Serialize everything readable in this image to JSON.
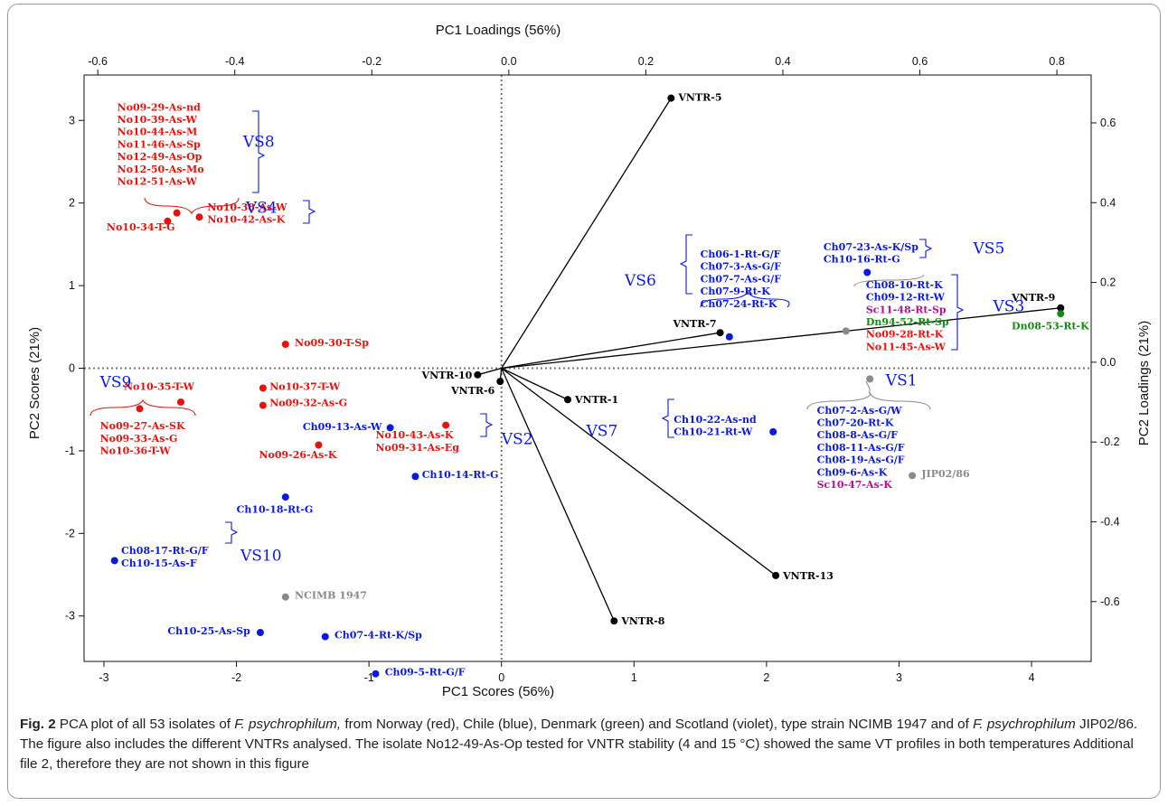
{
  "chart_data": {
    "type": "scatter",
    "subtype": "pca-biplot",
    "xlabel_bottom": "PC1 Scores (56%)",
    "xlabel_top": "PC1 Loadings (56%)",
    "ylabel_left": "PC2 Scores (21%)",
    "ylabel_right": "PC2 Loadings (21%)",
    "xlim": [
      -3.15,
      4.45
    ],
    "ylim": [
      -3.55,
      3.55
    ],
    "loadings_xlim": [
      -0.62,
      0.85
    ],
    "loadings_ylim": [
      -0.75,
      0.72
    ],
    "grid": false,
    "reference_lines": "dotted at x=0 and y=0",
    "x_ticks": [
      -3,
      -2,
      -1,
      0,
      1,
      2,
      3,
      4
    ],
    "y_ticks": [
      -3,
      -2,
      -1,
      0,
      1,
      2,
      3
    ],
    "top_ticks": [
      -0.6,
      -0.4,
      -0.2,
      0.0,
      0.2,
      0.4,
      0.6,
      0.8
    ],
    "right_ticks": [
      -0.6,
      -0.4,
      -0.2,
      0.0,
      0.2,
      0.4,
      0.6
    ],
    "x_tick_labels": [
      "-3",
      "-2",
      "-1",
      "0",
      "1",
      "2",
      "3",
      "4"
    ],
    "y_tick_labels": [
      "-3",
      "-2",
      "-1",
      "0",
      "1",
      "2",
      "3"
    ],
    "top_tick_labels": [
      "-0.6",
      "-0.4",
      "-0.2",
      "0.0",
      "0.2",
      "0.4",
      "0.6",
      "0.8"
    ],
    "right_tick_labels": [
      "-0.6",
      "-0.4",
      "-0.2",
      "0.0",
      "0.2",
      "0.4",
      "0.6"
    ],
    "colors": {
      "norway": "#e8120c",
      "chile": "#0a18e0",
      "denmark": "#128a12",
      "scotland": "#b0119a",
      "reference": "#8a8a8a",
      "vntr": "#000000"
    },
    "vntr_vectors": [
      {
        "name": "VNTR-5",
        "x": 1.28,
        "y": 3.27
      },
      {
        "name": "VNTR-9",
        "x": 4.22,
        "y": 0.73
      },
      {
        "name": "VNTR-7",
        "x": 1.65,
        "y": 0.43
      },
      {
        "name": "VNTR-10",
        "x": -0.18,
        "y": -0.08
      },
      {
        "name": "VNTR-6",
        "x": -0.01,
        "y": -0.16
      },
      {
        "name": "VNTR-1",
        "x": 0.5,
        "y": -0.38
      },
      {
        "name": "VNTR-13",
        "x": 2.07,
        "y": -2.51
      },
      {
        "name": "VNTR-8",
        "x": 0.85,
        "y": -3.06
      }
    ],
    "vntr_label_text": [
      "VNTR-5",
      "VNTR-9",
      "VNTR-7",
      "VNTR-10",
      "VNTR-6",
      "VNTR-1",
      "VNTR-13",
      "VNTR-8"
    ],
    "isolate_points": [
      {
        "x": -2.45,
        "y": 1.88,
        "color": "norway"
      },
      {
        "x": -2.28,
        "y": 1.83,
        "color": "norway"
      },
      {
        "x": -2.52,
        "y": 1.78,
        "color": "norway"
      },
      {
        "x": -1.63,
        "y": 0.29,
        "color": "norway"
      },
      {
        "x": -2.42,
        "y": -0.41,
        "color": "norway"
      },
      {
        "x": -2.73,
        "y": -0.49,
        "color": "norway"
      },
      {
        "x": -1.8,
        "y": -0.24,
        "color": "norway"
      },
      {
        "x": -1.8,
        "y": -0.45,
        "color": "norway"
      },
      {
        "x": -1.38,
        "y": -0.93,
        "color": "norway"
      },
      {
        "x": -0.42,
        "y": -0.69,
        "color": "norway"
      },
      {
        "x": -0.84,
        "y": -0.72,
        "color": "chile"
      },
      {
        "x": -0.65,
        "y": -1.31,
        "color": "chile"
      },
      {
        "x": -1.63,
        "y": -1.56,
        "color": "chile"
      },
      {
        "x": -2.92,
        "y": -2.33,
        "color": "chile"
      },
      {
        "x": -1.82,
        "y": -3.2,
        "color": "chile"
      },
      {
        "x": -1.33,
        "y": -3.25,
        "color": "chile"
      },
      {
        "x": -0.95,
        "y": -3.7,
        "color": "chile"
      },
      {
        "x": -1.63,
        "y": -2.77,
        "color": "reference"
      },
      {
        "x": 1.72,
        "y": 0.38,
        "color": "chile"
      },
      {
        "x": 2.76,
        "y": 1.16,
        "color": "chile"
      },
      {
        "x": 2.6,
        "y": 0.45,
        "color": "reference"
      },
      {
        "x": 2.78,
        "y": -0.13,
        "color": "reference"
      },
      {
        "x": 2.05,
        "y": -0.77,
        "color": "chile"
      },
      {
        "x": 3.1,
        "y": -1.3,
        "color": "reference"
      },
      {
        "x": 4.22,
        "y": 0.66,
        "color": "denmark"
      }
    ],
    "point_labels": [
      {
        "text": "No10-34-T-G",
        "x": -2.98,
        "y": 1.67,
        "color": "norway"
      },
      {
        "text": "No10-38-As-W",
        "x": -2.22,
        "y": 1.91,
        "color": "norway"
      },
      {
        "text": "No10-42-As-K",
        "x": -2.22,
        "y": 1.76,
        "color": "norway"
      },
      {
        "text": "No09-29-As-nd",
        "x": -2.9,
        "y": 3.12,
        "color": "norway"
      },
      {
        "text": "No10-39-As-W",
        "x": -2.9,
        "y": 2.97,
        "color": "norway"
      },
      {
        "text": "No10-44-As-M",
        "x": -2.9,
        "y": 2.82,
        "color": "norway"
      },
      {
        "text": "No11-46-As-Sp",
        "x": -2.9,
        "y": 2.67,
        "color": "norway"
      },
      {
        "text": "No12-49-As-Op",
        "x": -2.9,
        "y": 2.52,
        "color": "norway"
      },
      {
        "text": "No12-50-As-Mo",
        "x": -2.9,
        "y": 2.37,
        "color": "norway"
      },
      {
        "text": "No12-51-As-W",
        "x": -2.9,
        "y": 2.22,
        "color": "norway"
      },
      {
        "text": "No09-30-T-Sp",
        "x": -1.56,
        "y": 0.27,
        "color": "norway"
      },
      {
        "text": "No10-35-T-W",
        "x": -2.85,
        "y": -0.26,
        "color": "norway"
      },
      {
        "text": "No10-37-T-W",
        "x": -1.75,
        "y": -0.26,
        "color": "norway"
      },
      {
        "text": "No09-32-As-G",
        "x": -1.75,
        "y": -0.46,
        "color": "norway"
      },
      {
        "text": "No09-27-As-SK",
        "x": -3.03,
        "y": -0.74,
        "color": "norway"
      },
      {
        "text": "No09-33-As-G",
        "x": -3.03,
        "y": -0.89,
        "color": "norway"
      },
      {
        "text": "No10-36-T-W",
        "x": -3.03,
        "y": -1.04,
        "color": "norway"
      },
      {
        "text": "No09-26-As-K",
        "x": -1.83,
        "y": -1.09,
        "color": "norway"
      },
      {
        "text": "No10-43-As-K",
        "x": -0.95,
        "y": -0.85,
        "color": "norway"
      },
      {
        "text": "No09-31-As-Eg",
        "x": -0.95,
        "y": -1.0,
        "color": "norway"
      },
      {
        "text": "Ch09-13-As-W",
        "x": -1.5,
        "y": -0.75,
        "color": "chile"
      },
      {
        "text": "Ch10-14-Rt-G",
        "x": -0.6,
        "y": -1.33,
        "color": "chile"
      },
      {
        "text": "Ch10-18-Rt-G",
        "x": -2.0,
        "y": -1.75,
        "color": "chile"
      },
      {
        "text": "Ch08-17-Rt-G/F",
        "x": -2.87,
        "y": -2.25,
        "color": "chile"
      },
      {
        "text": "Ch10-15-As-F",
        "x": -2.87,
        "y": -2.4,
        "color": "chile"
      },
      {
        "text": "NCIMB 1947",
        "x": -1.56,
        "y": -2.79,
        "color": "reference"
      },
      {
        "text": "Ch10-25-As-Sp",
        "x": -2.52,
        "y": -3.22,
        "color": "chile"
      },
      {
        "text": "Ch07-4-Rt-K/Sp",
        "x": -1.26,
        "y": -3.27,
        "color": "chile"
      },
      {
        "text": "Ch09-5-Rt-G/F",
        "x": -0.88,
        "y": -3.72,
        "color": "chile"
      },
      {
        "text": "Ch06-1-Rt-G/F",
        "x": 1.5,
        "y": 1.34,
        "color": "chile"
      },
      {
        "text": "Ch07-3-As-G/F",
        "x": 1.5,
        "y": 1.19,
        "color": "chile"
      },
      {
        "text": "Ch07-7-As-G/F",
        "x": 1.5,
        "y": 1.04,
        "color": "chile"
      },
      {
        "text": "Ch07-9-Rt-K",
        "x": 1.5,
        "y": 0.89,
        "color": "chile"
      },
      {
        "text": "Ch07-24-Rt-K",
        "x": 1.5,
        "y": 0.74,
        "color": "chile"
      },
      {
        "text": "Ch07-23-As-K/Sp",
        "x": 2.43,
        "y": 1.43,
        "color": "chile"
      },
      {
        "text": "Ch10-16-Rt-G",
        "x": 2.43,
        "y": 1.28,
        "color": "chile"
      },
      {
        "text": "Ch08-10-Rt-K",
        "x": 2.75,
        "y": 0.97,
        "color": "chile"
      },
      {
        "text": "Ch09-12-Rt-W",
        "x": 2.75,
        "y": 0.82,
        "color": "chile"
      },
      {
        "text": "Sc11-48-Rt-Sp",
        "x": 2.75,
        "y": 0.67,
        "color": "scotland"
      },
      {
        "text": "Dn94-52-Rt-Sp",
        "x": 2.75,
        "y": 0.52,
        "color": "denmark"
      },
      {
        "text": "No09-28-Rt-K",
        "x": 2.75,
        "y": 0.37,
        "color": "norway"
      },
      {
        "text": "No11-45-As-W",
        "x": 2.75,
        "y": 0.22,
        "color": "norway"
      },
      {
        "text": "Dn08-53-Rt-K",
        "x": 3.85,
        "y": 0.47,
        "color": "denmark"
      },
      {
        "text": "Ch10-22-As-nd",
        "x": 1.3,
        "y": -0.66,
        "color": "chile"
      },
      {
        "text": "Ch10-21-Rt-W",
        "x": 1.3,
        "y": -0.81,
        "color": "chile"
      },
      {
        "text": "Ch07-2-As-G/W",
        "x": 2.38,
        "y": -0.55,
        "color": "chile"
      },
      {
        "text": "Ch07-20-Rt-K",
        "x": 2.38,
        "y": -0.7,
        "color": "chile"
      },
      {
        "text": "Ch08-8-As-G/F",
        "x": 2.38,
        "y": -0.85,
        "color": "chile"
      },
      {
        "text": "Ch08-11-As-G/F",
        "x": 2.38,
        "y": -1.0,
        "color": "chile"
      },
      {
        "text": "Ch08-19-As-G/F",
        "x": 2.38,
        "y": -1.15,
        "color": "chile"
      },
      {
        "text": "Ch09-6-As-K",
        "x": 2.38,
        "y": -1.3,
        "color": "chile"
      },
      {
        "text": "Sc10-47-As-K",
        "x": 2.38,
        "y": -1.45,
        "color": "scotland"
      },
      {
        "text": "JIP02/86",
        "x": 3.17,
        "y": -1.32,
        "color": "reference"
      }
    ],
    "groups": [
      {
        "name": "VS8",
        "x": -1.95,
        "y": 2.68,
        "color": "chile"
      },
      {
        "name": "VS4",
        "x": -1.93,
        "y": 1.88,
        "color": "chile"
      },
      {
        "name": "VS9",
        "x": -3.03,
        "y": -0.23,
        "color": "chile"
      },
      {
        "name": "VS10",
        "x": -1.97,
        "y": -2.33,
        "color": "chile"
      },
      {
        "name": "VS2",
        "x": 0.0,
        "y": -0.92,
        "color": "chile"
      },
      {
        "name": "VS6",
        "x": 0.93,
        "y": 1.0,
        "color": "chile"
      },
      {
        "name": "VS5",
        "x": 3.56,
        "y": 1.39,
        "color": "chile"
      },
      {
        "name": "VS3",
        "x": 3.71,
        "y": 0.69,
        "color": "chile"
      },
      {
        "name": "VS1",
        "x": 2.9,
        "y": -0.21,
        "color": "chile"
      },
      {
        "name": "VS7",
        "x": 0.64,
        "y": -0.82,
        "color": "chile"
      }
    ]
  },
  "caption": {
    "fig_label": "Fig. 2",
    "parts": [
      " PCA plot of all 53 isolates of ",
      "F. psychrophilum,",
      " from Norway (red), Chile (blue), Denmark (green) and Scotland (violet), type strain NCIMB 1947 and of ",
      "F. psychrophilum",
      " JIP02/86. The figure also includes the different VNTRs analysed. The isolate No12-49-As-Op tested for VNTR stability (4 and 15 °C) showed the same VT profiles in both temperatures Additional file 2, therefore they are not shown in this figure"
    ]
  }
}
